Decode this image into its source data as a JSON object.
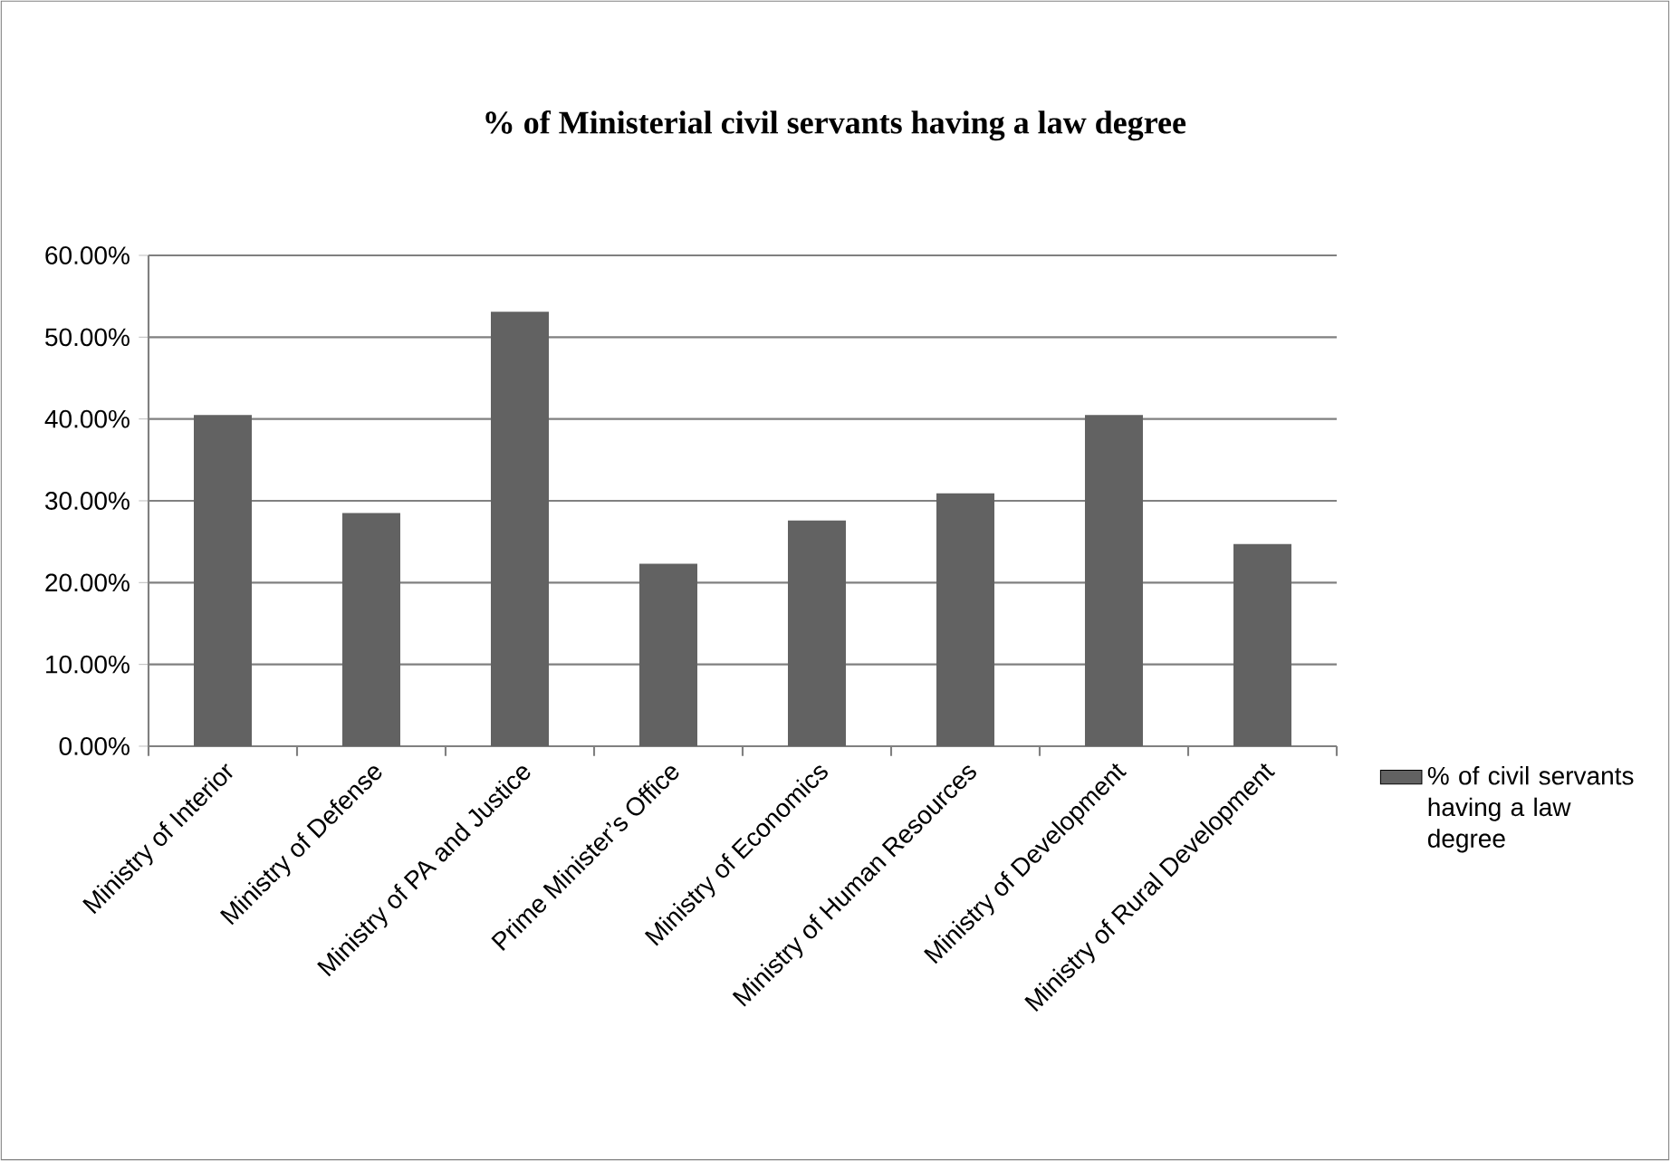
{
  "chart_data": {
    "type": "bar",
    "title": "% of Ministerial civil servants having a law degree",
    "categories": [
      "Ministry of Interior",
      "Ministry of Defense",
      "Ministry of PA and Justice",
      "Prime Minister’s Office",
      "Ministry of Economics",
      "Ministry of Human Resources",
      "Ministry of  Development",
      "Ministry of Rural Development"
    ],
    "series": [
      {
        "name": "% of civil servants having a law degree",
        "color": "#626262",
        "values": [
          40.5,
          28.5,
          53.1,
          22.3,
          27.6,
          30.9,
          40.5,
          24.7
        ]
      }
    ],
    "ylim": [
      0,
      60
    ],
    "yticks": [
      {
        "value": 0,
        "label": "0.00%"
      },
      {
        "value": 10,
        "label": "10.00%"
      },
      {
        "value": 20,
        "label": "20.00%"
      },
      {
        "value": 30,
        "label": "30.00%"
      },
      {
        "value": 40,
        "label": "40.00%"
      },
      {
        "value": 50,
        "label": "50.00%"
      },
      {
        "value": 60,
        "label": "60.00%"
      }
    ],
    "grid": "y",
    "legend": "right"
  }
}
